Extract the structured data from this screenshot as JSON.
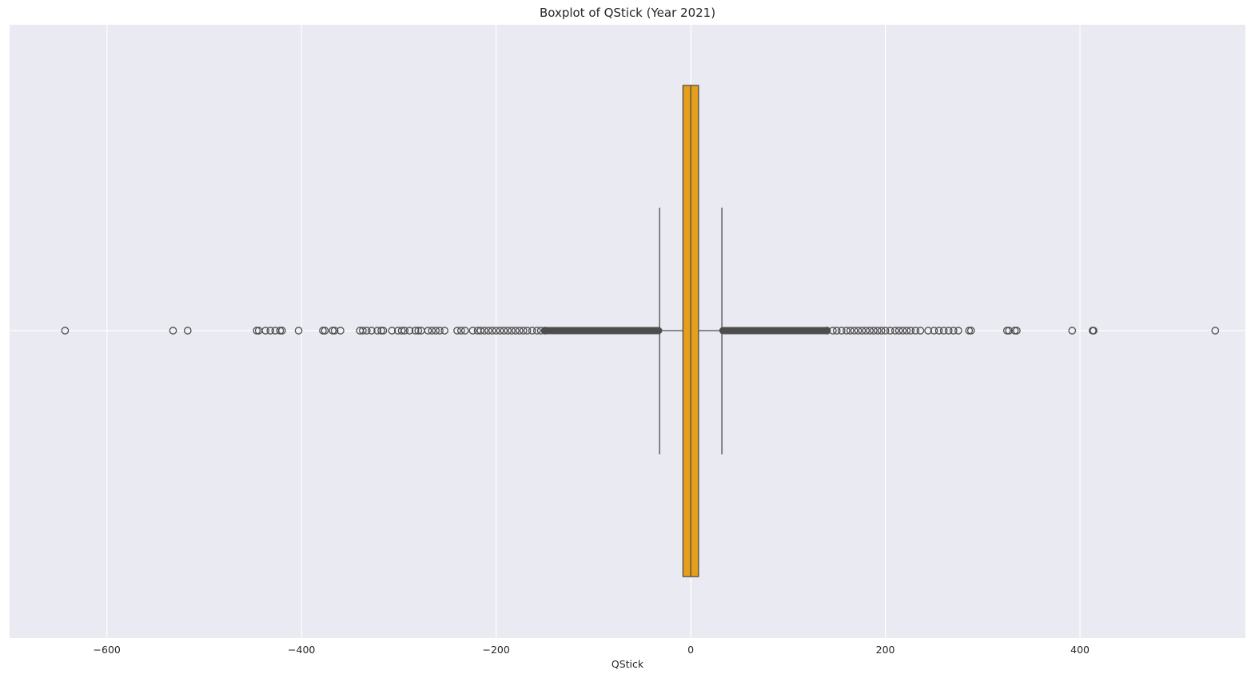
{
  "chart_data": {
    "type": "boxplot",
    "title": "Boxplot of QStick (Year 2021)",
    "xlabel": "QStick",
    "ylabel": "",
    "orientation": "horizontal",
    "xlim": [
      -700,
      570
    ],
    "xticks": [
      -600,
      -400,
      -200,
      0,
      200,
      400
    ],
    "xtick_labels": [
      "−600",
      "−400",
      "−200",
      "0",
      "200",
      "400"
    ],
    "grid": true,
    "colors": {
      "background": "#eaeaf2",
      "grid": "#ffffff",
      "box_fill": "#e69f1a",
      "line": "#4d4d4d"
    },
    "box": {
      "whisker_low": -32,
      "q1": -8,
      "median": 0,
      "q3": 8,
      "whisker_high": 32
    },
    "outliers": [
      -643,
      -532,
      -517,
      -446,
      -444,
      -437,
      -432,
      -427,
      -422,
      -420,
      -403,
      -378,
      -376,
      -368,
      -366,
      -360,
      -340,
      -337,
      -333,
      -328,
      -322,
      -318,
      -316,
      -307,
      -301,
      -297,
      -294,
      -289,
      -283,
      -280,
      -277,
      -270,
      -266,
      -262,
      -258,
      -253,
      -240,
      -236,
      -232,
      -224,
      -219,
      -216,
      -212,
      -208,
      -204,
      -200,
      -196,
      -192,
      -188,
      -184,
      -180,
      -176,
      -172,
      -168,
      -163,
      -158,
      -154,
      -150,
      140,
      146,
      150,
      155,
      160,
      164,
      168,
      172,
      176,
      180,
      184,
      188,
      192,
      196,
      200,
      205,
      210,
      214,
      218,
      222,
      226,
      231,
      236,
      244,
      250,
      255,
      260,
      265,
      270,
      275,
      286,
      288,
      325,
      327,
      333,
      335,
      392,
      413,
      414,
      539
    ],
    "dense_outlier_ranges": [
      [
        -150,
        -33
      ],
      [
        33,
        140
      ]
    ]
  }
}
